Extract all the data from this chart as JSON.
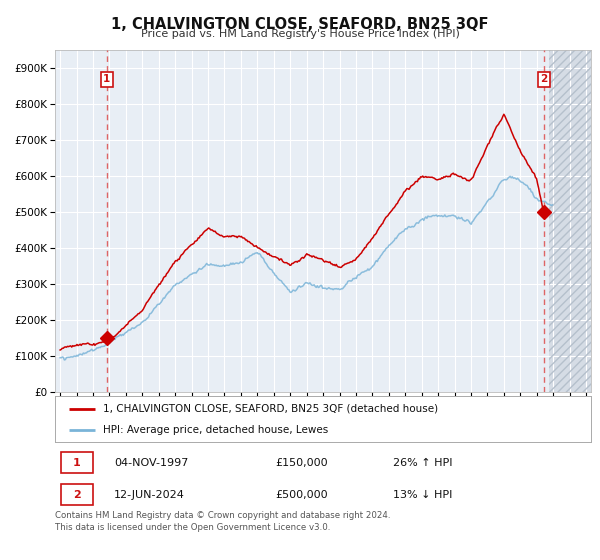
{
  "title": "1, CHALVINGTON CLOSE, SEAFORD, BN25 3QF",
  "subtitle": "Price paid vs. HM Land Registry's House Price Index (HPI)",
  "legend_entry1": "1, CHALVINGTON CLOSE, SEAFORD, BN25 3QF (detached house)",
  "legend_entry2": "HPI: Average price, detached house, Lewes",
  "sale1_date": "04-NOV-1997",
  "sale1_price": 150000,
  "sale1_hpi": "26% ↑ HPI",
  "sale2_date": "12-JUN-2024",
  "sale2_price": 500000,
  "sale2_hpi": "13% ↓ HPI",
  "footer": "Contains HM Land Registry data © Crown copyright and database right 2024.\nThis data is licensed under the Open Government Licence v3.0.",
  "ylim": [
    0,
    950000
  ],
  "xlim_start": 1994.7,
  "xlim_end": 2027.3,
  "hatch_start": 2024.75,
  "sale1_x": 1997.84,
  "sale2_x": 2024.45,
  "line_color_red": "#cc0000",
  "line_color_blue": "#7ab4d8",
  "plot_bg": "#e8eef5",
  "grid_color": "#ffffff",
  "dashed_line_color": "#dd5555",
  "hatch_bg": "#d8dfe8",
  "hatch_line": "#b8c4d0"
}
